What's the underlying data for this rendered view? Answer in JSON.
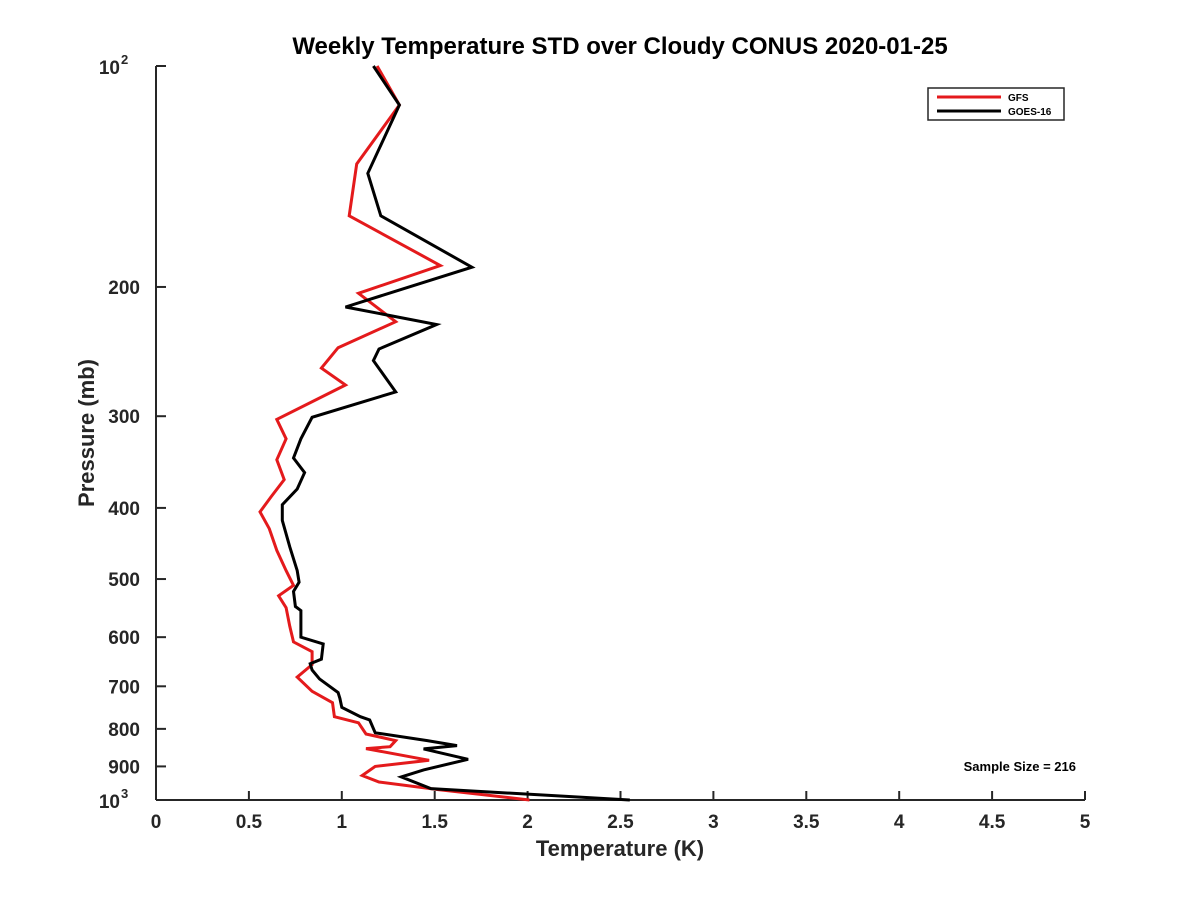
{
  "chart_data": {
    "type": "line",
    "title": "Weekly Temperature STD over Cloudy CONUS 2020-01-25",
    "xlabel": "Temperature (K)",
    "ylabel": "Pressure (mb)",
    "xlim": [
      0,
      5
    ],
    "ylim": [
      1000,
      100
    ],
    "yscale": "log",
    "grid": false,
    "legend_position": "top-right",
    "x_ticks": [
      "0",
      "0.5",
      "1",
      "1.5",
      "2",
      "2.5",
      "3",
      "3.5",
      "4",
      "4.5",
      "5"
    ],
    "x_tick_values": [
      0,
      0.5,
      1,
      1.5,
      2,
      2.5,
      3,
      3.5,
      4,
      4.5,
      5
    ],
    "y_ticks": [
      {
        "value": 100,
        "base": "10",
        "exp": "2"
      },
      {
        "value": 200,
        "base": "200",
        "exp": ""
      },
      {
        "value": 300,
        "base": "300",
        "exp": ""
      },
      {
        "value": 400,
        "base": "400",
        "exp": ""
      },
      {
        "value": 500,
        "base": "500",
        "exp": ""
      },
      {
        "value": 600,
        "base": "600",
        "exp": ""
      },
      {
        "value": 700,
        "base": "700",
        "exp": ""
      },
      {
        "value": 800,
        "base": "800",
        "exp": ""
      },
      {
        "value": 900,
        "base": "900",
        "exp": ""
      },
      {
        "value": 1000,
        "base": "10",
        "exp": "3"
      }
    ],
    "annotation": "Sample Size = 216",
    "series": [
      {
        "name": "GFS",
        "color": "#e41a1c",
        "points": [
          [
            1.19,
            100
          ],
          [
            1.31,
            113
          ],
          [
            1.08,
            136
          ],
          [
            1.04,
            160
          ],
          [
            1.53,
            187
          ],
          [
            1.09,
            204
          ],
          [
            1.29,
            223
          ],
          [
            0.98,
            242
          ],
          [
            0.89,
            258
          ],
          [
            1.02,
            272
          ],
          [
            0.65,
            303
          ],
          [
            0.7,
            322
          ],
          [
            0.65,
            344
          ],
          [
            0.69,
            366
          ],
          [
            0.62,
            386
          ],
          [
            0.56,
            405
          ],
          [
            0.61,
            427
          ],
          [
            0.65,
            457
          ],
          [
            0.7,
            487
          ],
          [
            0.74,
            510
          ],
          [
            0.66,
            527
          ],
          [
            0.7,
            547
          ],
          [
            0.72,
            580
          ],
          [
            0.74,
            609
          ],
          [
            0.84,
            628
          ],
          [
            0.84,
            654
          ],
          [
            0.76,
            680
          ],
          [
            0.84,
            711
          ],
          [
            0.95,
            737
          ],
          [
            0.96,
            770
          ],
          [
            1.09,
            785
          ],
          [
            1.13,
            813
          ],
          [
            1.29,
            830
          ],
          [
            1.26,
            846
          ],
          [
            1.13,
            851
          ],
          [
            1.47,
            883
          ],
          [
            1.18,
            900
          ],
          [
            1.11,
            926
          ],
          [
            1.2,
            945
          ],
          [
            1.52,
            968
          ],
          [
            2.01,
            1000
          ]
        ]
      },
      {
        "name": "GOES-16",
        "color": "#000000",
        "points": [
          [
            1.17,
            100
          ],
          [
            1.31,
            113
          ],
          [
            1.14,
            140
          ],
          [
            1.21,
            160
          ],
          [
            1.7,
            188
          ],
          [
            1.02,
            213
          ],
          [
            1.51,
            225
          ],
          [
            1.2,
            243
          ],
          [
            1.17,
            252
          ],
          [
            1.29,
            278
          ],
          [
            0.84,
            301
          ],
          [
            0.78,
            322
          ],
          [
            0.74,
            342
          ],
          [
            0.8,
            358
          ],
          [
            0.76,
            377
          ],
          [
            0.68,
            396
          ],
          [
            0.68,
            416
          ],
          [
            0.72,
            452
          ],
          [
            0.76,
            487
          ],
          [
            0.77,
            505
          ],
          [
            0.74,
            520
          ],
          [
            0.75,
            545
          ],
          [
            0.78,
            552
          ],
          [
            0.78,
            600
          ],
          [
            0.9,
            613
          ],
          [
            0.89,
            643
          ],
          [
            0.83,
            652
          ],
          [
            0.84,
            665
          ],
          [
            0.88,
            684
          ],
          [
            0.98,
            714
          ],
          [
            0.99,
            727
          ],
          [
            1.0,
            748
          ],
          [
            1.1,
            770
          ],
          [
            1.15,
            778
          ],
          [
            1.18,
            810
          ],
          [
            1.46,
            830
          ],
          [
            1.62,
            843
          ],
          [
            1.44,
            852
          ],
          [
            1.68,
            880
          ],
          [
            1.44,
            910
          ],
          [
            1.32,
            930
          ],
          [
            1.48,
            965
          ],
          [
            2.55,
            1000
          ]
        ]
      }
    ]
  }
}
